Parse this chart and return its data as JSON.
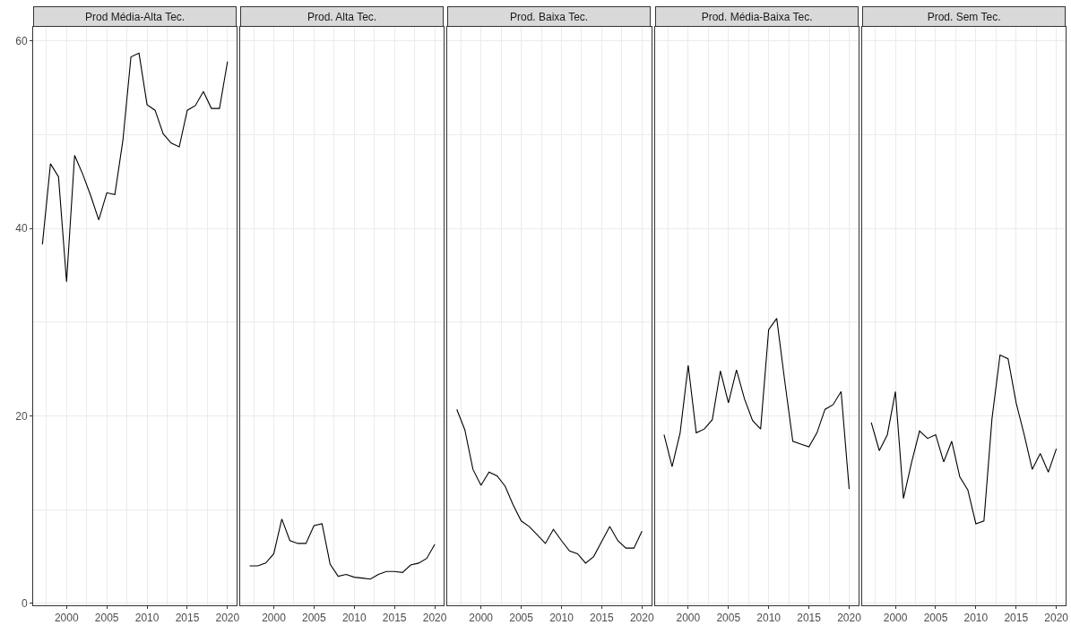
{
  "chart_data": [
    {
      "type": "line",
      "title": "Prod Média-Alta Tec.",
      "x": [
        1997,
        1998,
        1999,
        2000,
        2001,
        2002,
        2003,
        2004,
        2005,
        2006,
        2007,
        2008,
        2009,
        2010,
        2011,
        2012,
        2013,
        2014,
        2015,
        2016,
        2017,
        2018,
        2019,
        2020
      ],
      "values": [
        38.3,
        46.9,
        45.5,
        34.3,
        47.8,
        45.8,
        43.5,
        40.9,
        43.8,
        43.6,
        49.4,
        58.3,
        58.7,
        53.2,
        52.6,
        50.1,
        49.1,
        48.7,
        52.6,
        53.1,
        54.6,
        52.8,
        52.8,
        57.8
      ],
      "color": "#000000",
      "xlim": [
        1995.85,
        2021.15
      ],
      "ylim": [
        -0.2,
        61.5
      ],
      "xticks": [
        2000,
        2005,
        2010,
        2015,
        2020
      ],
      "yticks": [
        0,
        20,
        40,
        60
      ],
      "grid": true
    },
    {
      "type": "line",
      "title": "Prod. Alta Tec.",
      "x": [
        1997,
        1998,
        1999,
        2000,
        2001,
        2002,
        2003,
        2004,
        2005,
        2006,
        2007,
        2008,
        2009,
        2010,
        2011,
        2012,
        2013,
        2014,
        2015,
        2016,
        2017,
        2018,
        2019,
        2020
      ],
      "values": [
        4.0,
        4.0,
        4.3,
        5.3,
        9.0,
        6.7,
        6.4,
        6.4,
        8.3,
        8.5,
        4.2,
        2.9,
        3.1,
        2.8,
        2.7,
        2.6,
        3.1,
        3.4,
        3.4,
        3.3,
        4.1,
        4.3,
        4.8,
        6.3
      ],
      "color": "#000000",
      "xlim": [
        1995.85,
        2021.15
      ],
      "ylim": [
        -0.2,
        61.5
      ],
      "xticks": [
        2000,
        2005,
        2010,
        2015,
        2020
      ],
      "yticks": [
        0,
        20,
        40,
        60
      ],
      "grid": true,
      "tick_labels": "x"
    },
    {
      "type": "line",
      "title": "Prod. Baixa Tec.",
      "x": [
        1997,
        1998,
        1999,
        2000,
        2001,
        2002,
        2003,
        2004,
        2005,
        2006,
        2007,
        2008,
        2009,
        2010,
        2011,
        2012,
        2013,
        2014,
        2015,
        2016,
        2017,
        2018,
        2019,
        2020
      ],
      "values": [
        20.7,
        18.5,
        14.3,
        12.6,
        14.0,
        13.6,
        12.5,
        10.5,
        8.8,
        8.2,
        7.3,
        6.4,
        7.9,
        6.7,
        5.6,
        5.3,
        4.3,
        5.0,
        6.6,
        8.2,
        6.7,
        5.9,
        5.9,
        7.7
      ],
      "color": "#000000",
      "xlim": [
        1995.85,
        2021.15
      ],
      "ylim": [
        -0.2,
        61.5
      ],
      "xticks": [
        2000,
        2005,
        2010,
        2015,
        2020
      ],
      "yticks": [
        0,
        20,
        40,
        60
      ],
      "grid": true,
      "tick_labels": "x"
    },
    {
      "type": "line",
      "title": "Prod. Média-Baixa Tec.",
      "x": [
        1997,
        1998,
        1999,
        2000,
        2001,
        2002,
        2003,
        2004,
        2005,
        2006,
        2007,
        2008,
        2009,
        2010,
        2011,
        2012,
        2013,
        2014,
        2015,
        2016,
        2017,
        2018,
        2019,
        2020
      ],
      "values": [
        18.0,
        14.6,
        18.2,
        25.4,
        18.2,
        18.6,
        19.6,
        24.8,
        21.4,
        24.9,
        21.8,
        19.5,
        18.6,
        29.2,
        30.4,
        23.7,
        17.3,
        17.0,
        16.7,
        18.2,
        20.7,
        21.2,
        22.6,
        12.2
      ],
      "color": "#000000",
      "xlim": [
        1995.85,
        2021.15
      ],
      "ylim": [
        -0.2,
        61.5
      ],
      "xticks": [
        2000,
        2005,
        2010,
        2015,
        2020
      ],
      "yticks": [
        0,
        20,
        40,
        60
      ],
      "grid": true,
      "tick_labels": "x"
    },
    {
      "type": "line",
      "title": "Prod. Sem Tec.",
      "x": [
        1997,
        1998,
        1999,
        2000,
        2001,
        2002,
        2003,
        2004,
        2005,
        2006,
        2007,
        2008,
        2009,
        2010,
        2011,
        2012,
        2013,
        2014,
        2015,
        2016,
        2017,
        2018,
        2019,
        2020
      ],
      "values": [
        19.3,
        16.3,
        18.0,
        22.6,
        11.2,
        15.0,
        18.4,
        17.6,
        18.0,
        15.1,
        17.3,
        13.5,
        12.1,
        8.5,
        8.8,
        19.7,
        26.5,
        26.1,
        21.4,
        18.0,
        14.3,
        16.0,
        14.0,
        16.5
      ],
      "color": "#000000",
      "xlim": [
        1995.85,
        2021.15
      ],
      "ylim": [
        -0.2,
        61.5
      ],
      "xticks": [
        2000,
        2005,
        2010,
        2015,
        2020
      ],
      "yticks": [
        0,
        20,
        40,
        60
      ],
      "grid": true,
      "tick_labels": "x"
    }
  ]
}
